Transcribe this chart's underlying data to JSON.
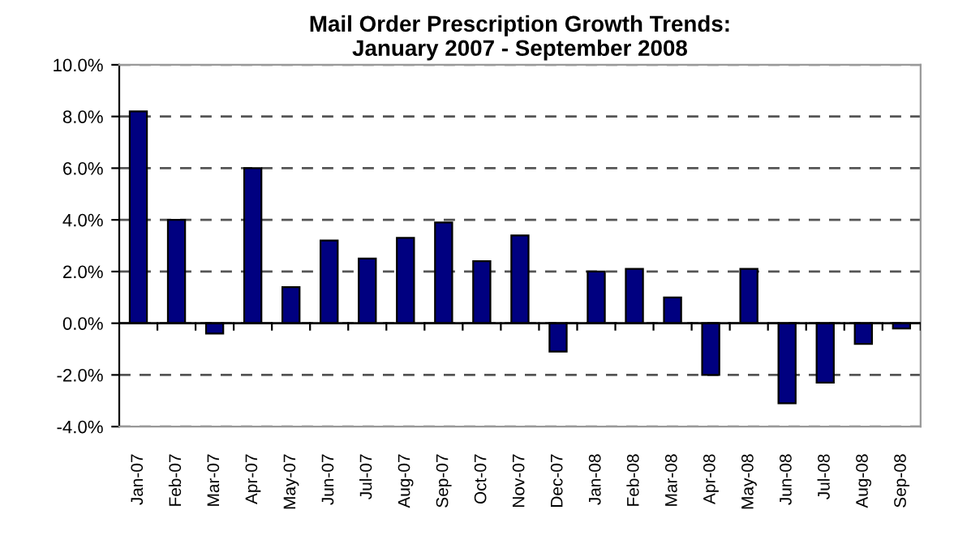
{
  "chart_data": {
    "type": "bar",
    "title": "Mail Order Prescription Growth Trends:\nJanuary 2007 - September 2008",
    "categories": [
      "Jan-07",
      "Feb-07",
      "Mar-07",
      "Apr-07",
      "May-07",
      "Jun-07",
      "Jul-07",
      "Aug-07",
      "Sep-07",
      "Oct-07",
      "Nov-07",
      "Dec-07",
      "Jan-08",
      "Feb-08",
      "Mar-08",
      "Apr-08",
      "May-08",
      "Jun-08",
      "Jul-08",
      "Aug-08",
      "Sep-08"
    ],
    "values": [
      8.2,
      4.0,
      -0.4,
      6.0,
      1.4,
      3.2,
      2.5,
      3.3,
      3.9,
      2.4,
      3.4,
      -1.1,
      2.0,
      2.1,
      1.0,
      -2.0,
      2.1,
      -3.1,
      -2.3,
      -0.8,
      -0.2
    ],
    "color": "#000080",
    "ylim": [
      -4,
      10
    ],
    "yticks": [
      {
        "value": -4,
        "label": "-4.0%"
      },
      {
        "value": -2,
        "label": "-2.0%"
      },
      {
        "value": 0,
        "label": "0.0%"
      },
      {
        "value": 2,
        "label": "2.0%"
      },
      {
        "value": 4,
        "label": "4.0%"
      },
      {
        "value": 6,
        "label": "6.0%"
      },
      {
        "value": 8,
        "label": "8.0%"
      },
      {
        "value": 10,
        "label": "10.0%"
      }
    ],
    "grid": "y"
  }
}
